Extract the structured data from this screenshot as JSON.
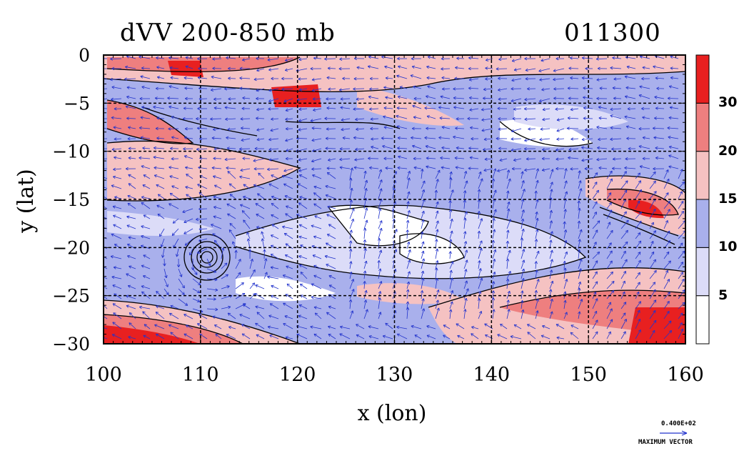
{
  "title": {
    "left": "dVV 200-850 mb",
    "right": "011300"
  },
  "axes": {
    "xlabel": "x (lon)",
    "ylabel": "y (lat)",
    "x_ticks": [
      "100",
      "110",
      "120",
      "130",
      "140",
      "150",
      "160"
    ],
    "y_ticks": [
      "0",
      "−5",
      "−10",
      "−15",
      "−20",
      "−25",
      "−30"
    ],
    "x_values": [
      100,
      110,
      120,
      130,
      140,
      150,
      160
    ],
    "y_values": [
      0,
      -5,
      -10,
      -15,
      -20,
      -25,
      -30
    ],
    "xlim": [
      100,
      160
    ],
    "ylim": [
      -30,
      0
    ]
  },
  "colorbar": {
    "labels": [
      "5",
      "10",
      "15",
      "20",
      "30"
    ],
    "levels": [
      5,
      10,
      15,
      20,
      30
    ],
    "colors": [
      "#ffffff",
      "#dcdcf8",
      "#a9b0ec",
      "#f5c2c2",
      "#ee7f7f",
      "#e82020"
    ]
  },
  "vector_legend": {
    "value": "0.400E+02",
    "label": "MAXIMUM VECTOR"
  },
  "colors": {
    "vector": "#2233cc",
    "contour": "#000000"
  }
}
